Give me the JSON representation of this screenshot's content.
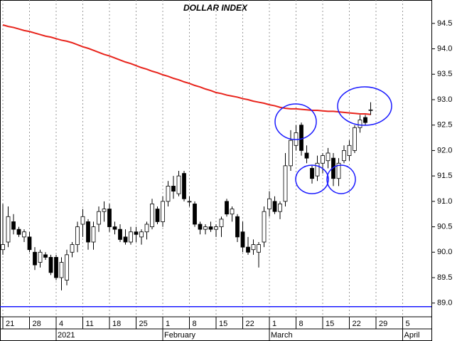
{
  "chart_data": {
    "type": "candlestick",
    "title": "DOLLAR INDEX",
    "categories": [
      "21",
      null,
      null,
      null,
      null,
      "28",
      null,
      null,
      null,
      null,
      "4",
      null,
      null,
      null,
      null,
      "11",
      null,
      null,
      null,
      null,
      "18",
      null,
      null,
      null,
      null,
      "25",
      null,
      null,
      null,
      null,
      "1",
      null,
      null,
      null,
      null,
      "8",
      null,
      null,
      null,
      null,
      "15",
      null,
      null,
      null,
      null,
      "22",
      null,
      null,
      null,
      null,
      "1",
      null,
      null,
      null,
      null,
      "8",
      null,
      null,
      null,
      null,
      "15",
      null,
      null,
      null,
      null,
      "22",
      null,
      null,
      null,
      null,
      "29",
      null,
      null,
      null,
      null,
      "5",
      null,
      null,
      null,
      null
    ],
    "month_labels": [
      {
        "label": "2021",
        "category": 10
      },
      {
        "label": "February",
        "category": 30
      },
      {
        "label": "March",
        "category": 50
      },
      {
        "label": "April",
        "category": 75
      }
    ],
    "open": [
      90.05,
      90.2,
      90.6,
      90.45,
      90.3,
      90.3,
      90.0,
      89.8,
      89.95,
      89.9,
      89.9,
      89.5,
      89.45,
      90.0,
      90.15,
      90.55,
      90.6,
      90.2,
      90.55,
      90.8,
      90.85,
      90.5,
      90.45,
      90.3,
      90.2,
      90.4,
      90.3,
      90.4,
      90.5,
      90.85,
      90.6,
      91.0,
      91.3,
      91.15,
      91.55,
      91.0,
      90.95,
      90.55,
      90.45,
      90.5,
      90.45,
      90.5,
      91.0,
      90.75,
      90.7,
      90.4,
      90.1,
      90.05,
      90.0,
      90.2,
      90.85,
      91.0,
      90.8,
      91.0,
      91.7,
      92.1,
      92.5,
      91.95,
      91.65,
      91.5,
      91.75,
      91.8,
      91.85,
      91.45,
      91.8,
      91.9,
      92.0,
      92.45,
      92.65,
      92.8,
      null,
      null,
      null,
      null,
      null,
      null,
      null,
      null,
      null,
      null
    ],
    "high": [
      90.95,
      90.9,
      90.75,
      90.5,
      90.45,
      90.4,
      90.1,
      90.05,
      90.0,
      89.95,
      89.95,
      89.9,
      90.05,
      90.2,
      90.6,
      90.85,
      90.65,
      90.6,
      90.9,
      91.0,
      90.95,
      90.6,
      90.55,
      90.45,
      90.5,
      90.5,
      90.45,
      90.6,
      91.05,
      90.9,
      91.1,
      91.4,
      91.5,
      91.6,
      91.6,
      91.1,
      91.0,
      90.6,
      90.55,
      90.6,
      90.55,
      90.7,
      91.05,
      90.9,
      90.75,
      90.6,
      90.3,
      90.25,
      90.2,
      90.9,
      91.2,
      91.1,
      91.0,
      91.95,
      92.4,
      92.5,
      92.55,
      92.1,
      91.7,
      91.9,
      91.95,
      92.05,
      91.95,
      91.85,
      92.1,
      92.2,
      92.5,
      92.7,
      92.7,
      92.95,
      null,
      null,
      null,
      null,
      null,
      null,
      null,
      null,
      null,
      null
    ],
    "low": [
      89.95,
      90.1,
      90.35,
      90.3,
      90.2,
      90.0,
      89.65,
      89.7,
      89.85,
      89.55,
      89.45,
      89.25,
      89.35,
      89.9,
      90.0,
      90.3,
      90.05,
      90.05,
      90.4,
      90.6,
      90.4,
      90.35,
      90.2,
      90.15,
      90.15,
      90.2,
      90.15,
      90.25,
      90.45,
      90.55,
      90.5,
      90.9,
      91.05,
      91.1,
      91.0,
      90.9,
      90.5,
      90.35,
      90.35,
      90.4,
      90.3,
      90.3,
      90.7,
      90.6,
      90.2,
      90.0,
      89.95,
      89.95,
      89.7,
      90.1,
      90.7,
      90.75,
      90.65,
      90.9,
      91.6,
      92.0,
      91.9,
      91.75,
      91.35,
      91.4,
      91.55,
      91.65,
      91.3,
      91.3,
      91.75,
      91.8,
      91.95,
      92.35,
      92.5,
      92.7,
      null,
      null,
      null,
      null,
      null,
      null,
      null,
      null,
      null,
      null
    ],
    "close": [
      90.15,
      90.7,
      90.45,
      90.35,
      90.4,
      90.05,
      89.75,
      90.0,
      89.9,
      89.6,
      89.5,
      89.8,
      89.95,
      90.15,
      90.5,
      90.7,
      90.2,
      90.5,
      90.8,
      90.85,
      90.5,
      90.45,
      90.25,
      90.2,
      90.4,
      90.35,
      90.4,
      90.55,
      90.95,
      90.6,
      91.0,
      91.3,
      91.2,
      91.5,
      91.05,
      91.0,
      90.55,
      90.45,
      90.5,
      90.45,
      90.5,
      90.65,
      90.75,
      90.85,
      90.3,
      90.1,
      90.0,
      90.15,
      90.15,
      90.8,
      91.05,
      90.8,
      90.95,
      91.7,
      92.2,
      92.35,
      92.0,
      91.85,
      91.45,
      91.75,
      91.9,
      91.95,
      91.45,
      91.75,
      92.0,
      92.1,
      92.45,
      92.6,
      92.55,
      92.8,
      null,
      null,
      null,
      null,
      null,
      null,
      null,
      null,
      null,
      null
    ],
    "up_color": "#ffffff",
    "down_color": "#000000",
    "moving_average": {
      "color": "#e8241c",
      "values": [
        94.47,
        94.44,
        94.42,
        94.39,
        94.36,
        94.34,
        94.31,
        94.28,
        94.25,
        94.23,
        94.2,
        94.17,
        94.15,
        94.12,
        94.08,
        94.04,
        94.01,
        93.97,
        93.93,
        93.89,
        93.86,
        93.82,
        93.78,
        93.74,
        93.71,
        93.67,
        93.63,
        93.6,
        93.56,
        93.53,
        93.49,
        93.46,
        93.42,
        93.39,
        93.35,
        93.32,
        93.28,
        93.25,
        93.21,
        93.18,
        93.14,
        93.12,
        93.09,
        93.07,
        93.05,
        93.02,
        93.0,
        92.97,
        92.95,
        92.93,
        92.9,
        92.88,
        92.85,
        92.83,
        92.82,
        92.82,
        92.81,
        92.8,
        92.79,
        92.79,
        92.78,
        92.77,
        92.77,
        92.76,
        92.75,
        92.74,
        92.73,
        92.72,
        92.72,
        92.71,
        null,
        null,
        null,
        null,
        null,
        null,
        null,
        null,
        null,
        null
      ]
    },
    "reference_line": {
      "value": 88.93,
      "color": "#1a1aff"
    },
    "ylim": [
      88.73,
      94.96
    ],
    "yticks": [
      {
        "value": 89.0,
        "label": "89.0"
      },
      89.5,
      {
        "value": 90.0,
        "label": "90.0"
      },
      90.5,
      {
        "value": 91.0,
        "label": "91.0"
      },
      91.5,
      {
        "value": 92.0,
        "label": "92.0"
      },
      92.5,
      {
        "value": 93.0,
        "label": "93.0"
      },
      93.5,
      {
        "value": 94.0,
        "label": "94.0"
      },
      94.5
    ],
    "grid": true
  }
}
